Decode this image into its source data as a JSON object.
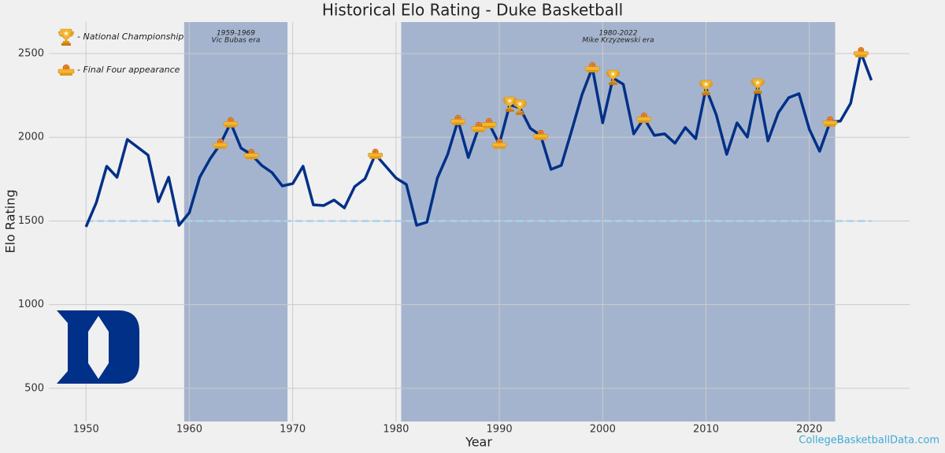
{
  "chart_data": {
    "type": "line",
    "title": "Historical Elo Rating - Duke Basketball",
    "x_label": "Year",
    "y_label": "Elo Rating",
    "watermark": "CollegeBasketballData.com",
    "x": [
      1950,
      1951,
      1952,
      1953,
      1954,
      1955,
      1956,
      1957,
      1958,
      1959,
      1960,
      1961,
      1962,
      1963,
      1964,
      1965,
      1966,
      1967,
      1968,
      1969,
      1970,
      1971,
      1972,
      1973,
      1974,
      1975,
      1976,
      1977,
      1978,
      1979,
      1980,
      1981,
      1982,
      1983,
      1984,
      1985,
      1986,
      1987,
      1988,
      1989,
      1990,
      1991,
      1992,
      1993,
      1994,
      1995,
      1996,
      1997,
      1998,
      1999,
      2000,
      2001,
      2002,
      2003,
      2004,
      2005,
      2006,
      2007,
      2008,
      2009,
      2010,
      2011,
      2012,
      2013,
      2014,
      2015,
      2016,
      2017,
      2018,
      2019,
      2020,
      2021,
      2022,
      2023,
      2024,
      2025,
      2026
    ],
    "values": [
      1465,
      1611,
      1827,
      1761,
      1987,
      1940,
      1893,
      1615,
      1761,
      1474,
      1549,
      1761,
      1870,
      1959,
      2086,
      1935,
      1897,
      1832,
      1789,
      1709,
      1723,
      1827,
      1596,
      1592,
      1625,
      1578,
      1705,
      1752,
      1898,
      1827,
      1756,
      1718,
      1474,
      1493,
      1756,
      1898,
      2100,
      1879,
      2058,
      2081,
      1959,
      2194,
      2175,
      2053,
      2011,
      1808,
      1832,
      2039,
      2255,
      2415,
      2086,
      2354,
      2316,
      2020,
      2114,
      2011,
      2020,
      1964,
      2058,
      1991,
      2293,
      2133,
      1898,
      2086,
      2001,
      2302,
      1978,
      2147,
      2236,
      2260,
      2048,
      1916,
      2091,
      2096,
      2203,
      2505,
      2340
    ],
    "color": "#003087",
    "baseline": 1500,
    "baseline_color": "#a6d3ec",
    "championships": [
      1991,
      1992,
      2001,
      2010,
      2015
    ],
    "final_fours": [
      1963,
      1964,
      1966,
      1978,
      1986,
      1988,
      1989,
      1990,
      1994,
      1999,
      2004,
      2022,
      2025
    ],
    "legend": {
      "championship": "- National Championship",
      "final_four": "- Final Four appearance"
    },
    "eras": [
      {
        "start": 1959.5,
        "end": 1969.5,
        "years": "1959-1969",
        "name": "Vic Bubas era"
      },
      {
        "start": 1980.5,
        "end": 2022.5,
        "years": "1980-2022",
        "name": "Mike Krzyzewski era"
      }
    ],
    "era_color": "#4a6aa5",
    "xlim": [
      1946.4,
      2029.7
    ],
    "ylim": [
      302,
      2688
    ],
    "xticks": [
      1950,
      1960,
      1970,
      1980,
      1990,
      2000,
      2010,
      2020
    ],
    "yticks": [
      500,
      1000,
      1500,
      2000,
      2500
    ],
    "grid": true
  }
}
